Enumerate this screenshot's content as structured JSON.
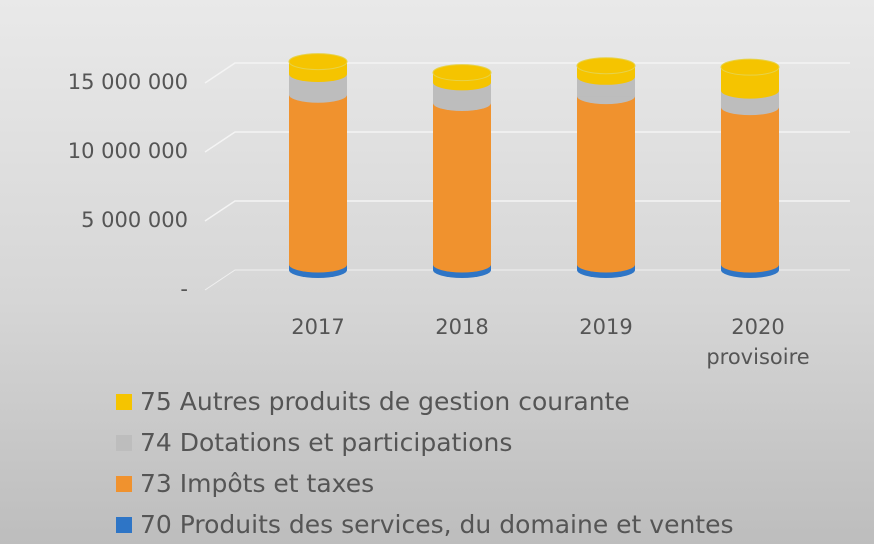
{
  "chart_data": {
    "type": "bar",
    "stacked": true,
    "categories": [
      "2017",
      "2018",
      "2019",
      "2020 provisoire"
    ],
    "series": [
      {
        "name": "70 Produits des services, du domaine et ventes",
        "color": "#2e75c6",
        "values": [
          400000,
          400000,
          400000,
          400000
        ]
      },
      {
        "name": "73 Impôts et taxes",
        "color": "#f0922e",
        "values": [
          12300000,
          11700000,
          12200000,
          11400000
        ]
      },
      {
        "name": "74 Dotations et participations",
        "color": "#bdbdbd",
        "values": [
          1500000,
          1500000,
          1400000,
          1200000
        ]
      },
      {
        "name": "75 Autres produits de gestion courante",
        "color": "#f5c400",
        "values": [
          900000,
          700000,
          800000,
          1700000
        ]
      }
    ],
    "ylim": [
      0,
      16000000
    ],
    "yticks": [
      {
        "value": 0,
        "label": "-"
      },
      {
        "value": 5000000,
        "label": "5 000 000"
      },
      {
        "value": 10000000,
        "label": "10 000 000"
      },
      {
        "value": 15000000,
        "label": "15 000 000"
      }
    ],
    "grid": true
  }
}
